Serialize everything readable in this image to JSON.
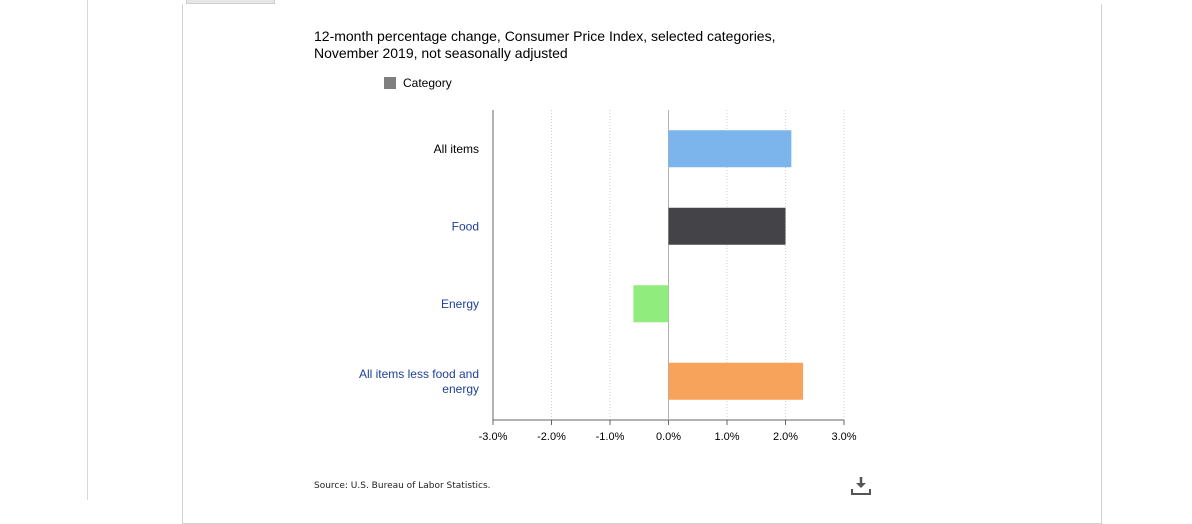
{
  "chart_data": {
    "type": "bar",
    "orientation": "horizontal",
    "title_lines": [
      "12-month percentage change, Consumer Price Index, selected categories,",
      "November 2019, not seasonally adjusted"
    ],
    "legend": {
      "label": "Category",
      "color": "#7f7f7f"
    },
    "categories": [
      "All items",
      "Food",
      "Energy",
      "All items less food and energy"
    ],
    "category_label_lines": [
      [
        "All items"
      ],
      [
        "Food"
      ],
      [
        "Energy"
      ],
      [
        "All items less food and",
        "energy"
      ]
    ],
    "category_label_colors": [
      "#000000",
      "#1f3f99",
      "#1f3f99",
      "#1f3f99"
    ],
    "values": [
      2.1,
      2.0,
      -0.6,
      2.3
    ],
    "bar_colors": [
      "#7cb5ec",
      "#434348",
      "#90ed7d",
      "#f7a35c"
    ],
    "xlim": [
      -3.0,
      3.0
    ],
    "x_ticks": [
      -3.0,
      -2.0,
      -1.0,
      0.0,
      1.0,
      2.0,
      3.0
    ],
    "x_tick_labels": [
      "-3.0%",
      "-2.0%",
      "-1.0%",
      "0.0%",
      "1.0%",
      "2.0%",
      "3.0%"
    ],
    "grid": true,
    "legend_position": "top-left"
  },
  "source": "Source: U.S. Bureau of Labor Statistics.",
  "download_icon": "download-icon"
}
